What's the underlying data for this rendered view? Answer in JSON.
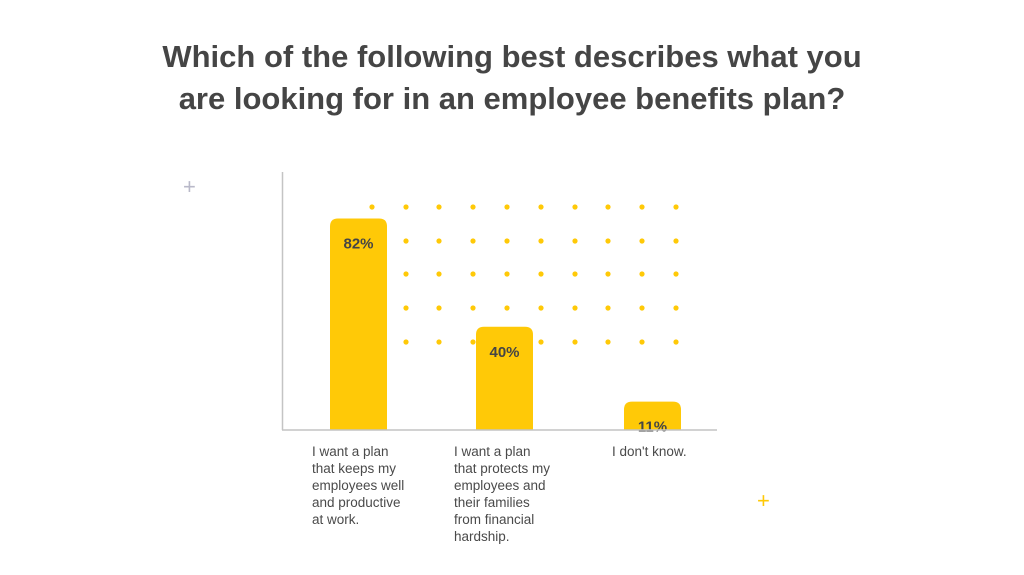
{
  "title_lines": [
    "Which of the following best describes what you",
    "are looking for in an employee benefits plan?"
  ],
  "colors": {
    "bar": "#FFC907",
    "dots": "#FFC907",
    "axis": "#c4c4c4",
    "text": "#454545",
    "plus_gray": "#b9b9c9",
    "plus_yellow": "#FFC907"
  },
  "chart_data": {
    "type": "bar",
    "categories": [
      "I want a plan\nthat keeps my\nemployees well\nand productive\nat work.",
      "I want a plan\nthat protects my\nemployees and\ntheir families\nfrom financial\nhardship.",
      "I don't know."
    ],
    "values": [
      82,
      40,
      11
    ],
    "data_labels": [
      "82%",
      "40%",
      "11%"
    ],
    "ylim": [
      0,
      100
    ],
    "xlabel": "",
    "ylabel": "",
    "grid": false
  }
}
